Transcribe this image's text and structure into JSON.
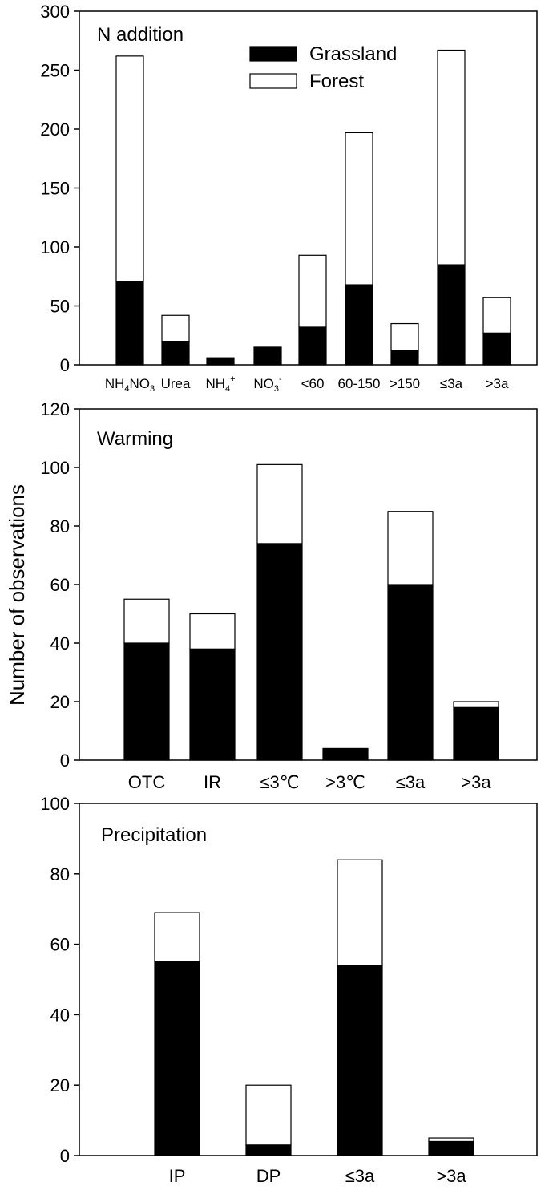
{
  "figure": {
    "ylabel": "Number of observations",
    "legend": [
      {
        "name": "Grassland",
        "color": "#000000"
      },
      {
        "name": "Forest",
        "color": "#ffffff"
      }
    ]
  },
  "chart_data": [
    {
      "type": "bar",
      "stacked": true,
      "title": "N addition",
      "categories": [
        "NH4NO3",
        "Urea",
        "NH4+",
        "NO3-",
        "<60",
        "60-150",
        ">150",
        "≤3a",
        ">3a"
      ],
      "category_labels": [
        {
          "base": "NH",
          "sub": "4",
          "mid": "NO",
          "sub2": "3",
          "sup": ""
        },
        {
          "base": "Urea"
        },
        {
          "base": "NH",
          "sub": "4",
          "sup": "+"
        },
        {
          "base": "NO",
          "sub": "3",
          "sup": "-"
        },
        {
          "base": "<60"
        },
        {
          "base": "60-150"
        },
        {
          "base": ">150"
        },
        {
          "base": "≤3a"
        },
        {
          "base": ">3a"
        }
      ],
      "series": [
        {
          "name": "Grassland",
          "values": [
            71,
            20,
            6,
            15,
            32,
            68,
            12,
            85,
            27
          ]
        },
        {
          "name": "Forest",
          "values": [
            191,
            22,
            0,
            0,
            61,
            129,
            23,
            182,
            30
          ]
        }
      ],
      "ylim": [
        0,
        300
      ],
      "yticks": [
        0,
        50,
        100,
        150,
        200,
        250,
        300
      ],
      "legend_position": "top-right"
    },
    {
      "type": "bar",
      "stacked": true,
      "title": "Warming",
      "categories": [
        "OTC",
        "IR",
        "≤3℃",
        ">3℃",
        "≤3a",
        ">3a"
      ],
      "series": [
        {
          "name": "Grassland",
          "values": [
            40,
            38,
            74,
            4,
            60,
            18
          ]
        },
        {
          "name": "Forest",
          "values": [
            15,
            12,
            27,
            0,
            25,
            2
          ]
        }
      ],
      "ylim": [
        0,
        120
      ],
      "yticks": [
        0,
        20,
        40,
        60,
        80,
        100,
        120
      ]
    },
    {
      "type": "bar",
      "stacked": true,
      "title": "Precipitation",
      "categories": [
        "IP",
        "DP",
        "≤3a",
        ">3a"
      ],
      "series": [
        {
          "name": "Grassland",
          "values": [
            55,
            3,
            54,
            4
          ]
        },
        {
          "name": "Forest",
          "values": [
            14,
            17,
            30,
            1
          ]
        }
      ],
      "ylim": [
        0,
        100
      ],
      "yticks": [
        0,
        20,
        40,
        60,
        80,
        100
      ]
    }
  ]
}
